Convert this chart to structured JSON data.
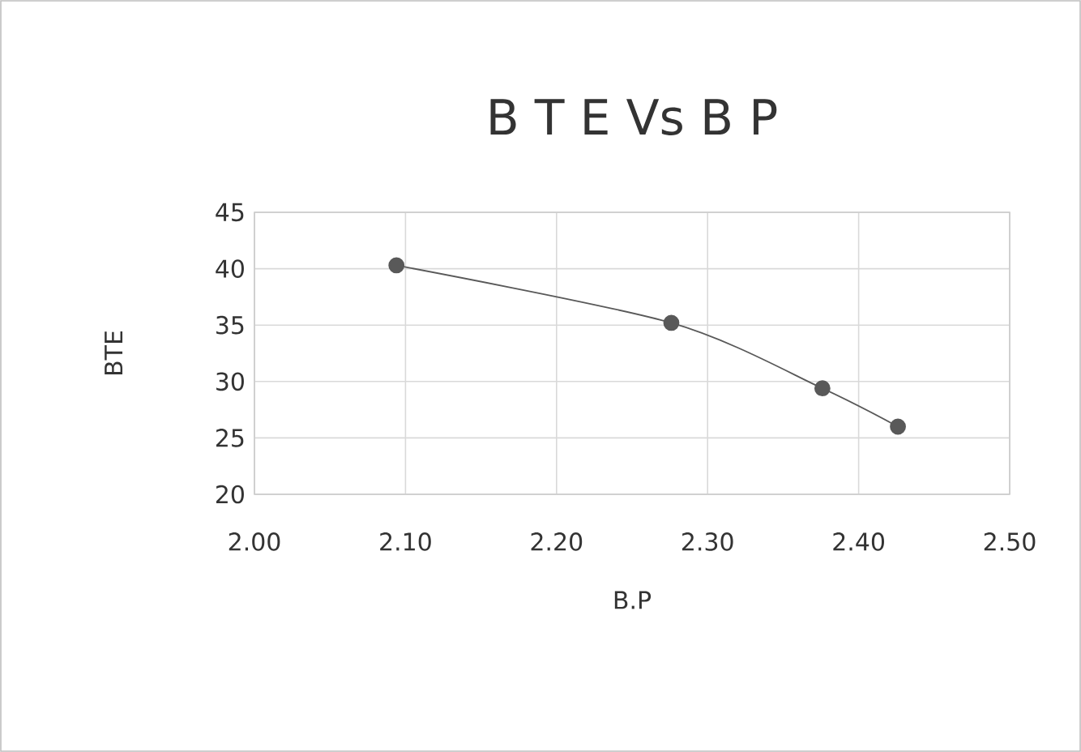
{
  "chart_data": {
    "type": "line",
    "title": "B T E Vs B P",
    "xlabel": "B.P",
    "ylabel": "BTE",
    "x": [
      2.094,
      2.276,
      2.376,
      2.426
    ],
    "series": [
      {
        "color": "#595959",
        "values": [
          40.3,
          35.2,
          29.4,
          26.0
        ]
      }
    ],
    "xlim": [
      2.0,
      2.5
    ],
    "xticks": [
      {
        "value": 2.0,
        "label": "2.00"
      },
      {
        "value": 2.1,
        "label": "2.10"
      },
      {
        "value": 2.2,
        "label": "2.20"
      },
      {
        "value": 2.3,
        "label": "2.30"
      },
      {
        "value": 2.4,
        "label": "2.40"
      },
      {
        "value": 2.5,
        "label": "2.50"
      }
    ],
    "ylim": [
      20,
      45
    ],
    "yticks": [
      20,
      25,
      30,
      35,
      40,
      45
    ],
    "grid": true,
    "marker": "circle",
    "line_style": "solid"
  }
}
